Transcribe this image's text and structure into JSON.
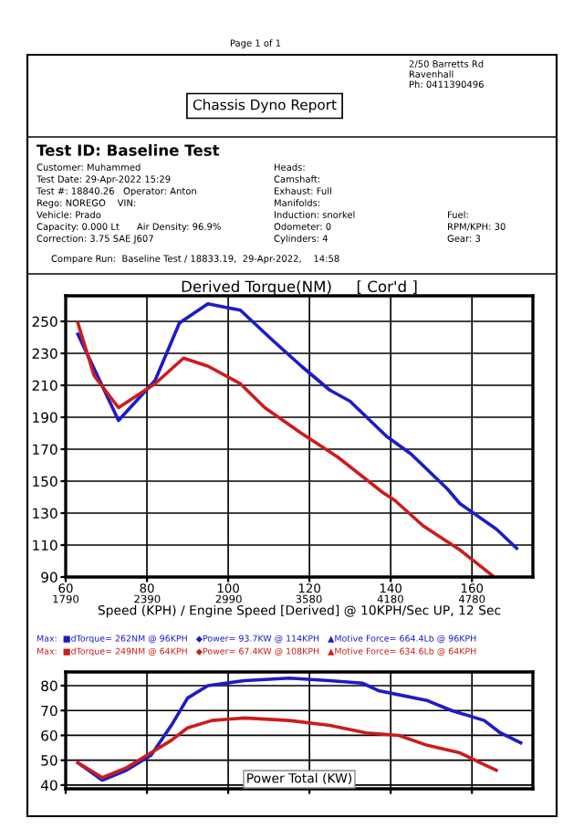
{
  "chart_data": [
    {
      "type": "line",
      "title": "Derived Torque(NM)     [ Cor'd ]",
      "xlabel": "Speed (KPH) / Engine Speed [Derived] @ 10KPH/Sec UP, 12 Sec",
      "xlim": [
        60,
        175
      ],
      "ylim": [
        90,
        266
      ],
      "xticks": [
        60,
        80,
        100,
        120,
        140,
        160
      ],
      "x2lim": [
        1790,
        5229
      ],
      "x2ticks": [
        1790,
        2390,
        2990,
        3580,
        4180,
        4780
      ],
      "yticks": [
        90,
        110,
        130,
        150,
        170,
        190,
        210,
        230,
        250
      ],
      "grid": true,
      "line_style": "solid",
      "series": [
        {
          "color": "#1c1cc8",
          "x": [
            63,
            73,
            82,
            88,
            95,
            103,
            111,
            118,
            125,
            130,
            139,
            145,
            154,
            157,
            166,
            171
          ],
          "values": [
            242,
            188,
            213,
            249,
            261,
            257,
            238,
            222,
            207,
            200,
            178,
            167,
            145,
            136,
            120,
            108
          ]
        },
        {
          "color": "#cc1c1c",
          "x": [
            63,
            67,
            73,
            82,
            89,
            95,
            103,
            109,
            118,
            127,
            138,
            141,
            148,
            157,
            165
          ],
          "values": [
            249,
            216,
            196,
            211,
            227,
            222,
            211,
            196,
            180,
            165,
            143,
            138,
            122,
            107,
            91
          ]
        }
      ],
      "annotations": [
        "Page 1 of 1",
        "Chassis Dyno Report",
        "2/50 Barretts Rd\nRavenhall\nPh: 0411390496",
        "Test ID: Baseline Test",
        "Customer: Muhammed",
        "Test Date: 29-Apr-2022 15:29",
        "Test #: 18840.26   Operator: Anton",
        "Rego: NOREGO    VIN:",
        "Vehicle: Prado",
        "Capacity: 0.000 Lt      Air Density: 96.9%",
        "Correction: 3.75 SAE J607",
        "Heads:",
        "Camshaft:",
        "Exhaust: Full",
        "Manifolds:",
        "Induction: snorkel",
        "Odometer: 0",
        "Cylinders: 4",
        "Fuel:",
        "RPM/KPH: 30",
        "Gear: 3",
        "Compare Run:  Baseline Test / 18833.19,  29-Apr-2022,    14:58"
      ]
    },
    {
      "type": "line",
      "title": "Power Total (KW)",
      "xlim": [
        60,
        175
      ],
      "ylim": [
        38.5,
        85.5
      ],
      "xticks": [
        60,
        80,
        100,
        120,
        140,
        160
      ],
      "yticks": [
        40,
        50,
        60,
        70,
        80
      ],
      "grid": true,
      "tick_labels": "y",
      "line_style": "solid",
      "series": [
        {
          "color": "#1c1cc8",
          "x": [
            63,
            69,
            75,
            81,
            86,
            90,
            95,
            104,
            115,
            125,
            133,
            137,
            143,
            149,
            155,
            163,
            167,
            172
          ],
          "values": [
            49,
            42,
            46,
            52,
            64,
            75,
            80,
            82,
            83,
            82,
            81,
            78,
            76,
            74,
            70,
            66,
            61,
            57
          ]
        },
        {
          "color": "#cc1c1c",
          "x": [
            63,
            69,
            75,
            81,
            86,
            90,
            96,
            104,
            115,
            125,
            134,
            142,
            149,
            157,
            162,
            166
          ],
          "values": [
            49,
            43,
            47,
            53,
            58,
            63,
            66,
            67,
            66,
            64,
            61,
            60,
            56,
            53,
            49,
            46
          ]
        }
      ],
      "annotations": [
        "Max:  ■dTorque= 262NM @ 96KPH   ◆Power= 93.7KW @ 114KPH   ▲Motive Force= 664.4Lb @ 96KPH",
        "Max:  ■dTorque= 249NM @ 64KPH   ◆Power= 67.4KW @ 108KPH   ▲Motive Force= 634.6Lb @ 64KPH"
      ]
    }
  ]
}
